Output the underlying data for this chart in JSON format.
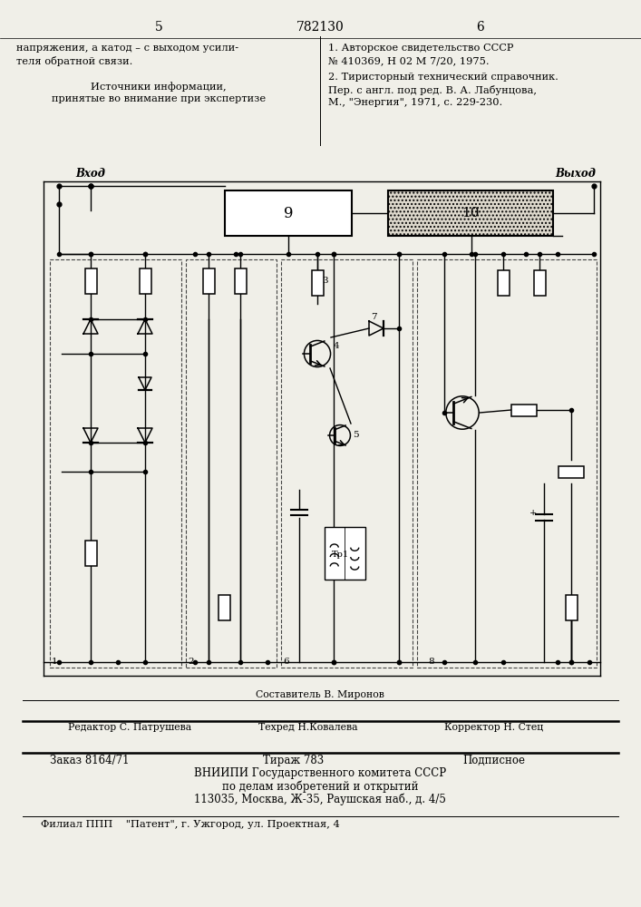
{
  "bg_color": "#f0efe8",
  "title_num": "782130",
  "col_left_num": "5",
  "col_right_num": "6",
  "text_left_l1": "напряжения, а катод – с выходом усили-",
  "text_left_l2": "теля обратной связи.",
  "text_sources_h1": "Источники информации,",
  "text_sources_h2": "принятые во внимание при экспертизе",
  "ref1_l1": "1. Авторское свидетельство СССР",
  "ref1_l2": "№ 410369, Н 02 М 7/20, 1975.",
  "ref2_l1": "2. Тиристорный технический справочник.",
  "ref2_l2": "Пер. с англ. под ред. В. А. Лабунцова,",
  "ref2_l3": "М., \"Энергия\", 1971, с. 229-230.",
  "footer_composer": "Составитель В. Миронов",
  "footer_editor": "Редактор С. Патрушева",
  "footer_techred": "Техред Н.Ковалева",
  "footer_corrector": "Корректор Н. Стец",
  "footer_order": "Заказ 8164/71",
  "footer_tirazh": "Тираж 783",
  "footer_podp": "Подписное",
  "footer_vniip1": "ВНИИПИ Государственного комитета СССР",
  "footer_vniip2": "по делам изобретений и открытий",
  "footer_vniip3": "113035, Москва, Ж-35, Раушская наб., д. 4/5",
  "footer_filial": "Филиал ППП    \"Патент\", г. Ужгород, ул. Проектная, 4"
}
